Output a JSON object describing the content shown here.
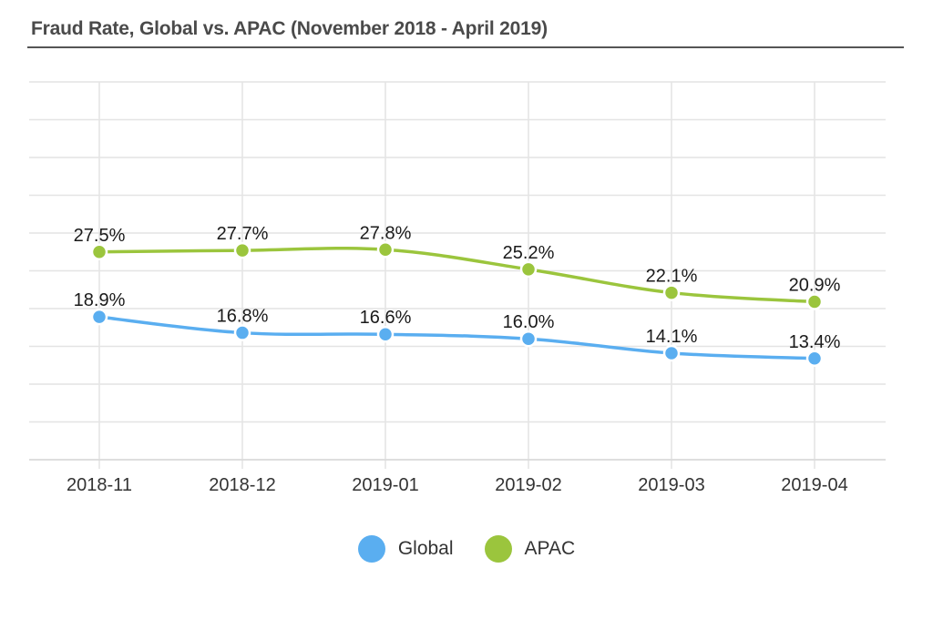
{
  "title": "Fraud Rate, Global vs. APAC (November 2018 - April 2019)",
  "chart_data": {
    "type": "line",
    "title": "Fraud Rate, Global vs. APAC (November 2018 - April 2019)",
    "xlabel": "",
    "ylabel": "",
    "categories": [
      "2018-11",
      "2018-12",
      "2019-01",
      "2019-02",
      "2019-03",
      "2019-04"
    ],
    "ylim": [
      0,
      50
    ],
    "grid": true,
    "legend_position": "bottom",
    "series": [
      {
        "name": "Global",
        "color": "#5aaef0",
        "values": [
          18.9,
          16.8,
          16.6,
          16.0,
          14.1,
          13.4
        ],
        "labels": [
          "18.9%",
          "16.8%",
          "16.6%",
          "16.0%",
          "14.1%",
          "13.4%"
        ]
      },
      {
        "name": "APAC",
        "color": "#9bc53d",
        "values": [
          27.5,
          27.7,
          27.8,
          25.2,
          22.1,
          20.9
        ],
        "labels": [
          "27.5%",
          "27.7%",
          "27.8%",
          "25.2%",
          "22.1%",
          "20.9%"
        ]
      }
    ]
  }
}
